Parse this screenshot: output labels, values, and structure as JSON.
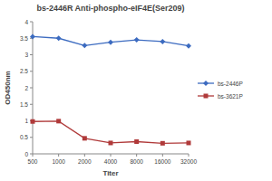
{
  "chart_data": {
    "type": "line",
    "title": "bs-2446R Anti-phospho-eIF4E(Ser209)",
    "x_label": "Titer",
    "y_label": "OD450nm",
    "categories": [
      "500",
      "1000",
      "2000",
      "4000",
      "8000",
      "16000",
      "32000"
    ],
    "series": [
      {
        "name": "bs-2446P",
        "color": "#3c6bc0",
        "marker": "diamond",
        "values": [
          3.55,
          3.5,
          3.28,
          3.38,
          3.45,
          3.4,
          3.27
        ]
      },
      {
        "name": "bs-3621P",
        "color": "#b03a3a",
        "marker": "square",
        "values": [
          0.98,
          0.99,
          0.47,
          0.33,
          0.37,
          0.32,
          0.33
        ]
      }
    ],
    "ylim": [
      0,
      4
    ],
    "yticks": [
      0,
      0.5,
      1,
      1.5,
      2,
      2.5,
      3,
      3.5,
      4
    ],
    "grid": false,
    "legend": "right"
  }
}
